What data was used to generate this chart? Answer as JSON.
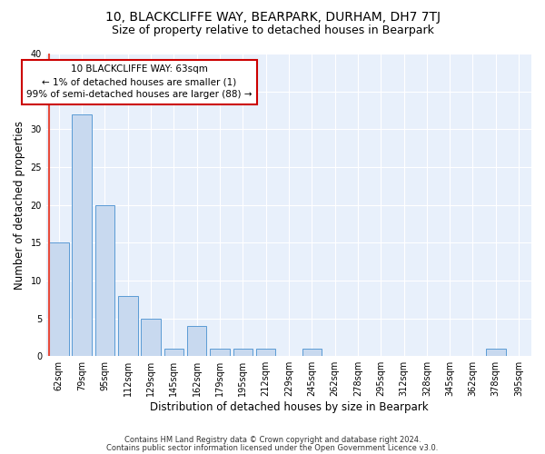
{
  "title": "10, BLACKCLIFFE WAY, BEARPARK, DURHAM, DH7 7TJ",
  "subtitle": "Size of property relative to detached houses in Bearpark",
  "xlabel": "Distribution of detached houses by size in Bearpark",
  "ylabel": "Number of detached properties",
  "categories": [
    "62sqm",
    "79sqm",
    "95sqm",
    "112sqm",
    "129sqm",
    "145sqm",
    "162sqm",
    "179sqm",
    "195sqm",
    "212sqm",
    "229sqm",
    "245sqm",
    "262sqm",
    "278sqm",
    "295sqm",
    "312sqm",
    "328sqm",
    "345sqm",
    "362sqm",
    "378sqm",
    "395sqm"
  ],
  "values": [
    15,
    32,
    20,
    8,
    5,
    1,
    4,
    1,
    1,
    1,
    0,
    1,
    0,
    0,
    0,
    0,
    0,
    0,
    0,
    1,
    0
  ],
  "bar_color": "#c8d9ef",
  "bar_edge_color": "#5b9bd5",
  "marker_color": "#e74c3c",
  "annotation_line1": "10 BLACKCLIFFE WAY: 63sqm",
  "annotation_line2": "← 1% of detached houses are smaller (1)",
  "annotation_line3": "99% of semi-detached houses are larger (88) →",
  "annotation_box_color": "#ffffff",
  "annotation_box_edge": "#cc0000",
  "ylim": [
    0,
    40
  ],
  "yticks": [
    0,
    5,
    10,
    15,
    20,
    25,
    30,
    35,
    40
  ],
  "footer1": "Contains HM Land Registry data © Crown copyright and database right 2024.",
  "footer2": "Contains public sector information licensed under the Open Government Licence v3.0.",
  "bg_color": "#e8f0fb",
  "fig_bg_color": "#ffffff",
  "grid_color": "#ffffff",
  "title_fontsize": 10,
  "subtitle_fontsize": 9,
  "tick_fontsize": 7,
  "ylabel_fontsize": 8.5,
  "xlabel_fontsize": 8.5,
  "footer_fontsize": 6,
  "annotation_fontsize": 7.5
}
